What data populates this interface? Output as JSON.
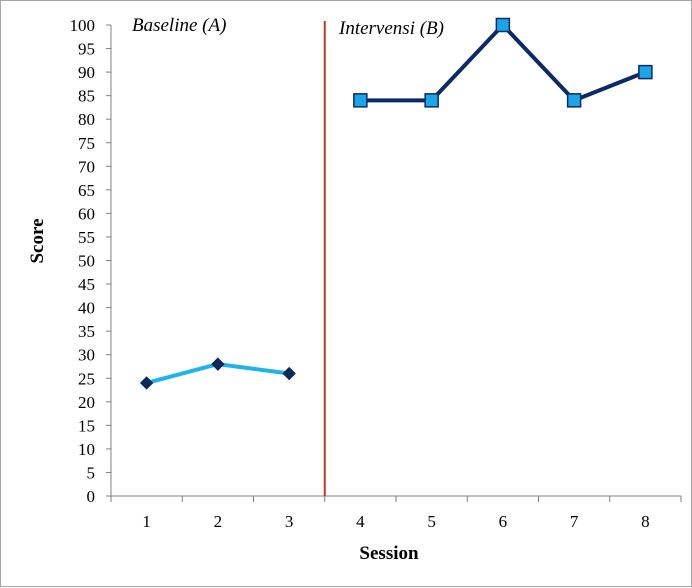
{
  "chart_data": {
    "type": "line",
    "xlabel": "Session",
    "ylabel": "Score",
    "x_ticks": [
      1,
      2,
      3,
      4,
      5,
      6,
      7,
      8
    ],
    "ylim": [
      0,
      100
    ],
    "y_ticks": [
      0,
      5,
      10,
      15,
      20,
      25,
      30,
      35,
      40,
      45,
      50,
      55,
      60,
      65,
      70,
      75,
      80,
      85,
      90,
      95,
      100
    ],
    "grid": false,
    "legend": "none",
    "phase_labels": [
      "Baseline (A)",
      "Intervensi (B)"
    ],
    "phase_change_after_session": 3.5,
    "series": [
      {
        "phase": "baseline",
        "x": [
          1,
          2,
          3
        ],
        "y": [
          24,
          28,
          26
        ],
        "marker": "diamond",
        "line_color": "#1fb4e8",
        "marker_color": "#0a2a5c"
      },
      {
        "phase": "intervention",
        "x": [
          4,
          5,
          6,
          7,
          8
        ],
        "y": [
          84,
          84,
          100,
          84,
          90
        ],
        "marker": "square",
        "line_color": "#0d2a66",
        "marker_color": "#1aa6e6"
      }
    ],
    "phase_line_color": "#c0392b"
  }
}
